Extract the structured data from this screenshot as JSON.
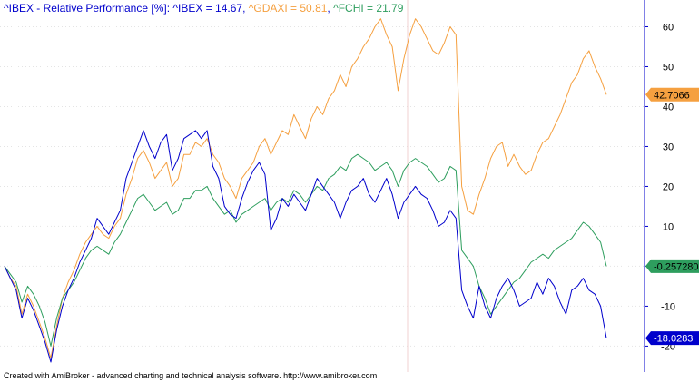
{
  "title": {
    "prefix": "^IBEX - Relative Performance [%]: ",
    "items": [
      {
        "text": "^IBEX = 14.67",
        "color": "#0000cc"
      },
      {
        "text": "^GDAXI = 50.81",
        "color": "#f5a040"
      },
      {
        "text": "^FCHI = 21.79",
        "color": "#2e9e5e"
      }
    ],
    "separator": ", "
  },
  "footer": "Created with AmiBroker - advanced charting and technical analysis software. http://www.amibroker.com",
  "chart_data": {
    "type": "line",
    "yticks": [
      60,
      50,
      40,
      30,
      20,
      10,
      0,
      -10,
      -20
    ],
    "ytick_labels": [
      "60",
      "50",
      "40",
      "30",
      "20",
      "10",
      "0",
      "-10",
      "-20"
    ],
    "ylim": [
      -26.5,
      66.7
    ],
    "grid": true,
    "series": [
      {
        "name": "^GDAXI",
        "color": "#f5a040",
        "last_value_label": "42.7066",
        "values": [
          0,
          -3,
          -5,
          -12,
          -7,
          -10,
          -14,
          -18,
          -23,
          -15,
          -8,
          -4,
          -1,
          3,
          6,
          8,
          10,
          8,
          7,
          10,
          12,
          18,
          22,
          27,
          29,
          26,
          22,
          24,
          26,
          20,
          22,
          28,
          28,
          31,
          30,
          32,
          28,
          26,
          22,
          20,
          17,
          22,
          24,
          26,
          30,
          32,
          28,
          31,
          34,
          33,
          38,
          35,
          32,
          37,
          40,
          38,
          42,
          44,
          48,
          45,
          50,
          52,
          55,
          57,
          60,
          62,
          58,
          55,
          44,
          52,
          58,
          62,
          60,
          57,
          54,
          53,
          56,
          60,
          58,
          20,
          14,
          13,
          18,
          22,
          27,
          30,
          31,
          25,
          28,
          25,
          23,
          24,
          28,
          31,
          32,
          35,
          38,
          42,
          46,
          48,
          52,
          54,
          50,
          47,
          43
        ]
      },
      {
        "name": "^FCHI",
        "color": "#2e9e5e",
        "last_value_label": "-0.257280",
        "values": [
          0,
          -2,
          -4,
          -9,
          -5,
          -7,
          -10,
          -14,
          -20,
          -13,
          -8,
          -6,
          -4,
          -1,
          2,
          4,
          5,
          4,
          3,
          6,
          8,
          11,
          14,
          17,
          18,
          16,
          14,
          15,
          16,
          13,
          14,
          17,
          17,
          19,
          19,
          20,
          17,
          15,
          13,
          14,
          11,
          13,
          14,
          15,
          16,
          17,
          14,
          16,
          17,
          16,
          19,
          18,
          16,
          18,
          20,
          19,
          22,
          23,
          25,
          24,
          27,
          28,
          27,
          26,
          24,
          25,
          26,
          24,
          20,
          24,
          26,
          27,
          26,
          25,
          23,
          21,
          22,
          25,
          24,
          4,
          2,
          0,
          -5,
          -8,
          -12,
          -10,
          -8,
          -6,
          -4,
          -3,
          -1,
          1,
          2,
          3,
          2,
          4,
          5,
          6,
          7,
          9,
          11,
          10,
          8,
          6,
          0
        ]
      },
      {
        "name": "^IBEX",
        "color": "#0000cc",
        "last_value_label": "-18.0283",
        "values": [
          0,
          -3,
          -6,
          -13,
          -8,
          -11,
          -15,
          -19,
          -24,
          -16,
          -10,
          -6,
          -3,
          1,
          4,
          7,
          12,
          10,
          8,
          11,
          14,
          22,
          26,
          30,
          34,
          30,
          27,
          31,
          33,
          24,
          27,
          32,
          33,
          34,
          32,
          34,
          25,
          22,
          15,
          13,
          12,
          17,
          21,
          24,
          26,
          23,
          9,
          12,
          17,
          15,
          18,
          16,
          14,
          18,
          22,
          20,
          18,
          16,
          12,
          16,
          19,
          20,
          22,
          18,
          16,
          19,
          22,
          18,
          12,
          16,
          18,
          20,
          18,
          17,
          14,
          10,
          11,
          14,
          12,
          -6,
          -10,
          -13,
          -5,
          -10,
          -13,
          -8,
          -5,
          -3,
          -6,
          -10,
          -9,
          -8,
          -4,
          -7,
          -3,
          -5,
          -9,
          -12,
          -6,
          -5,
          -3,
          -6,
          -7,
          -10,
          -18
        ]
      }
    ],
    "last_value_boxes": [
      {
        "series": "^GDAXI",
        "text": "42.7066",
        "fill": "#f5a040",
        "text_color": "#000000"
      },
      {
        "series": "^FCHI",
        "text": "-0.257280",
        "fill": "#2e9e5e",
        "text_color": "#000000"
      },
      {
        "series": "^IBEX",
        "text": "-18.0283",
        "fill": "#0000cc",
        "text_color": "#ffffff"
      }
    ]
  }
}
